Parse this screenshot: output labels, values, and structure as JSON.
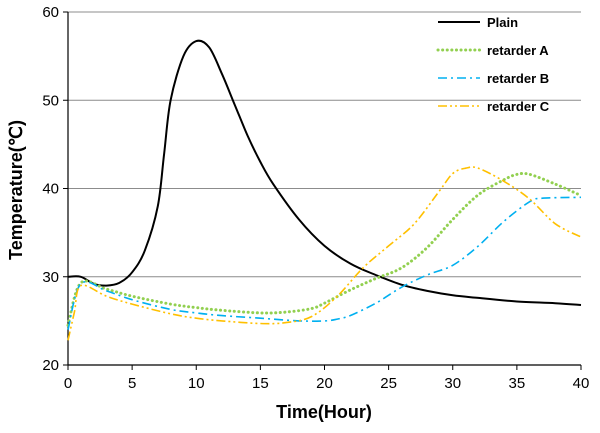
{
  "chart_data": {
    "type": "line",
    "xlabel": "Time(Hour)",
    "ylabel": "Temperature(℃)",
    "xlim": [
      0,
      40
    ],
    "ylim": [
      20,
      60
    ],
    "x_ticks": [
      "0",
      "5",
      "10",
      "15",
      "20",
      "25",
      "30",
      "35",
      "40"
    ],
    "y_ticks": [
      "20",
      "30",
      "40",
      "50",
      "60"
    ],
    "grid": "horizontal",
    "legend_position": "top-right",
    "series": [
      {
        "name": "Plain",
        "color": "#000000",
        "dash": "solid",
        "points": [
          [
            0,
            30
          ],
          [
            1,
            30
          ],
          [
            2,
            29.2
          ],
          [
            3,
            29
          ],
          [
            4,
            29.3
          ],
          [
            5,
            30.5
          ],
          [
            6,
            33
          ],
          [
            7,
            38
          ],
          [
            7.5,
            44
          ],
          [
            8,
            50
          ],
          [
            9,
            55
          ],
          [
            10,
            56.7
          ],
          [
            11,
            56
          ],
          [
            12,
            53
          ],
          [
            13,
            49.5
          ],
          [
            14,
            46
          ],
          [
            15,
            43
          ],
          [
            16,
            40.5
          ],
          [
            18,
            36.5
          ],
          [
            20,
            33.5
          ],
          [
            22,
            31.5
          ],
          [
            24,
            30.2
          ],
          [
            26,
            29.1
          ],
          [
            28,
            28.4
          ],
          [
            30,
            27.9
          ],
          [
            32,
            27.6
          ],
          [
            35,
            27.2
          ],
          [
            38,
            27
          ],
          [
            40,
            26.8
          ]
        ]
      },
      {
        "name": "retarder A",
        "color": "#92D050",
        "dash": "dotted",
        "points": [
          [
            0,
            24.5
          ],
          [
            1,
            29.3
          ],
          [
            3,
            28.6
          ],
          [
            5,
            27.8
          ],
          [
            8,
            26.9
          ],
          [
            10,
            26.5
          ],
          [
            12,
            26.2
          ],
          [
            15,
            25.9
          ],
          [
            17,
            26
          ],
          [
            19,
            26.4
          ],
          [
            20,
            27
          ],
          [
            22,
            28.5
          ],
          [
            24,
            29.8
          ],
          [
            26,
            31
          ],
          [
            28,
            33.3
          ],
          [
            30,
            36.5
          ],
          [
            32,
            39.3
          ],
          [
            34,
            41
          ],
          [
            35,
            41.6
          ],
          [
            36,
            41.6
          ],
          [
            38,
            40.5
          ],
          [
            40,
            39.2
          ]
        ]
      },
      {
        "name": "retarder B",
        "color": "#00B0F0",
        "dash": "dashdot",
        "points": [
          [
            0,
            24
          ],
          [
            1,
            29.2
          ],
          [
            3,
            28.4
          ],
          [
            5,
            27.4
          ],
          [
            8,
            26.3
          ],
          [
            10,
            25.9
          ],
          [
            12,
            25.6
          ],
          [
            15,
            25.3
          ],
          [
            18,
            25
          ],
          [
            20,
            25
          ],
          [
            21,
            25.2
          ],
          [
            22,
            25.6
          ],
          [
            24,
            27
          ],
          [
            26,
            28.8
          ],
          [
            28,
            30.2
          ],
          [
            30,
            31.3
          ],
          [
            32,
            33.5
          ],
          [
            34,
            36.3
          ],
          [
            36,
            38.5
          ],
          [
            37,
            38.9
          ],
          [
            40,
            39
          ]
        ]
      },
      {
        "name": "retarder C",
        "color": "#FFC000",
        "dash": "dashdotdot",
        "points": [
          [
            0,
            22.8
          ],
          [
            0.5,
            26
          ],
          [
            1,
            29
          ],
          [
            3,
            27.8
          ],
          [
            5,
            26.9
          ],
          [
            8,
            25.8
          ],
          [
            10,
            25.3
          ],
          [
            12,
            25
          ],
          [
            15,
            24.7
          ],
          [
            17,
            24.8
          ],
          [
            19,
            25.5
          ],
          [
            21,
            27.8
          ],
          [
            23,
            31
          ],
          [
            25,
            33.5
          ],
          [
            27,
            36
          ],
          [
            29,
            39.8
          ],
          [
            30,
            41.7
          ],
          [
            31,
            42.3
          ],
          [
            32,
            42.3
          ],
          [
            34,
            40.8
          ],
          [
            36,
            38.8
          ],
          [
            38,
            36
          ],
          [
            40,
            34.5
          ]
        ]
      }
    ]
  }
}
